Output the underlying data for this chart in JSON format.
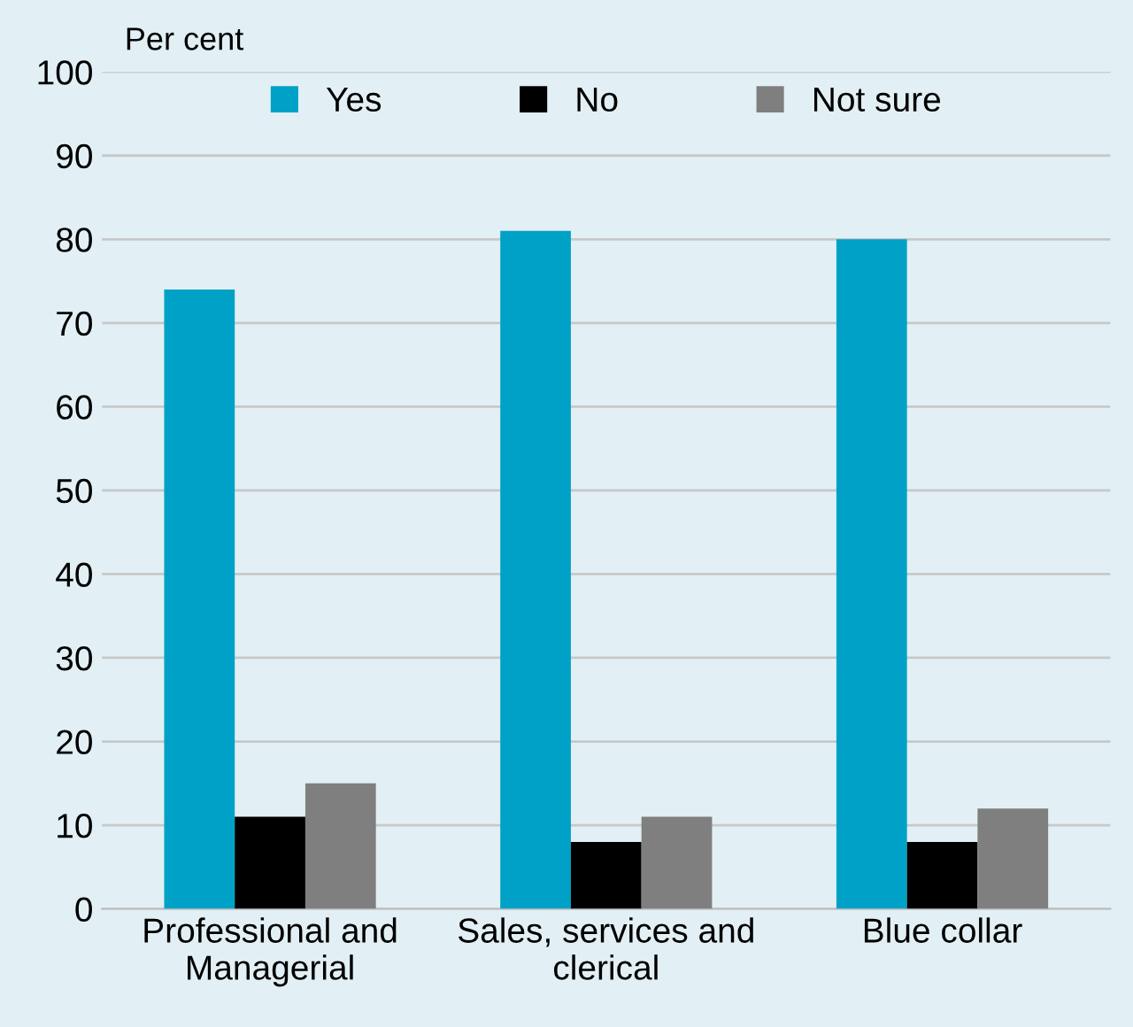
{
  "chart_data": {
    "type": "bar",
    "ylabel": "Per cent",
    "categories": [
      "Professional and\nManagerial",
      "Sales, services and\nclerical",
      "Blue collar"
    ],
    "series": [
      {
        "name": "Yes",
        "color": "#00a1c7",
        "values": [
          74,
          81,
          80
        ]
      },
      {
        "name": "No",
        "color": "#000000",
        "values": [
          11,
          8,
          8
        ]
      },
      {
        "name": "Not sure",
        "color": "#7f7f7f",
        "values": [
          15,
          11,
          12
        ]
      }
    ],
    "ylim": [
      0,
      100
    ],
    "yticks": [
      0,
      10,
      20,
      30,
      40,
      50,
      60,
      70,
      80,
      90,
      100
    ],
    "grid": "y",
    "legend": "top"
  }
}
